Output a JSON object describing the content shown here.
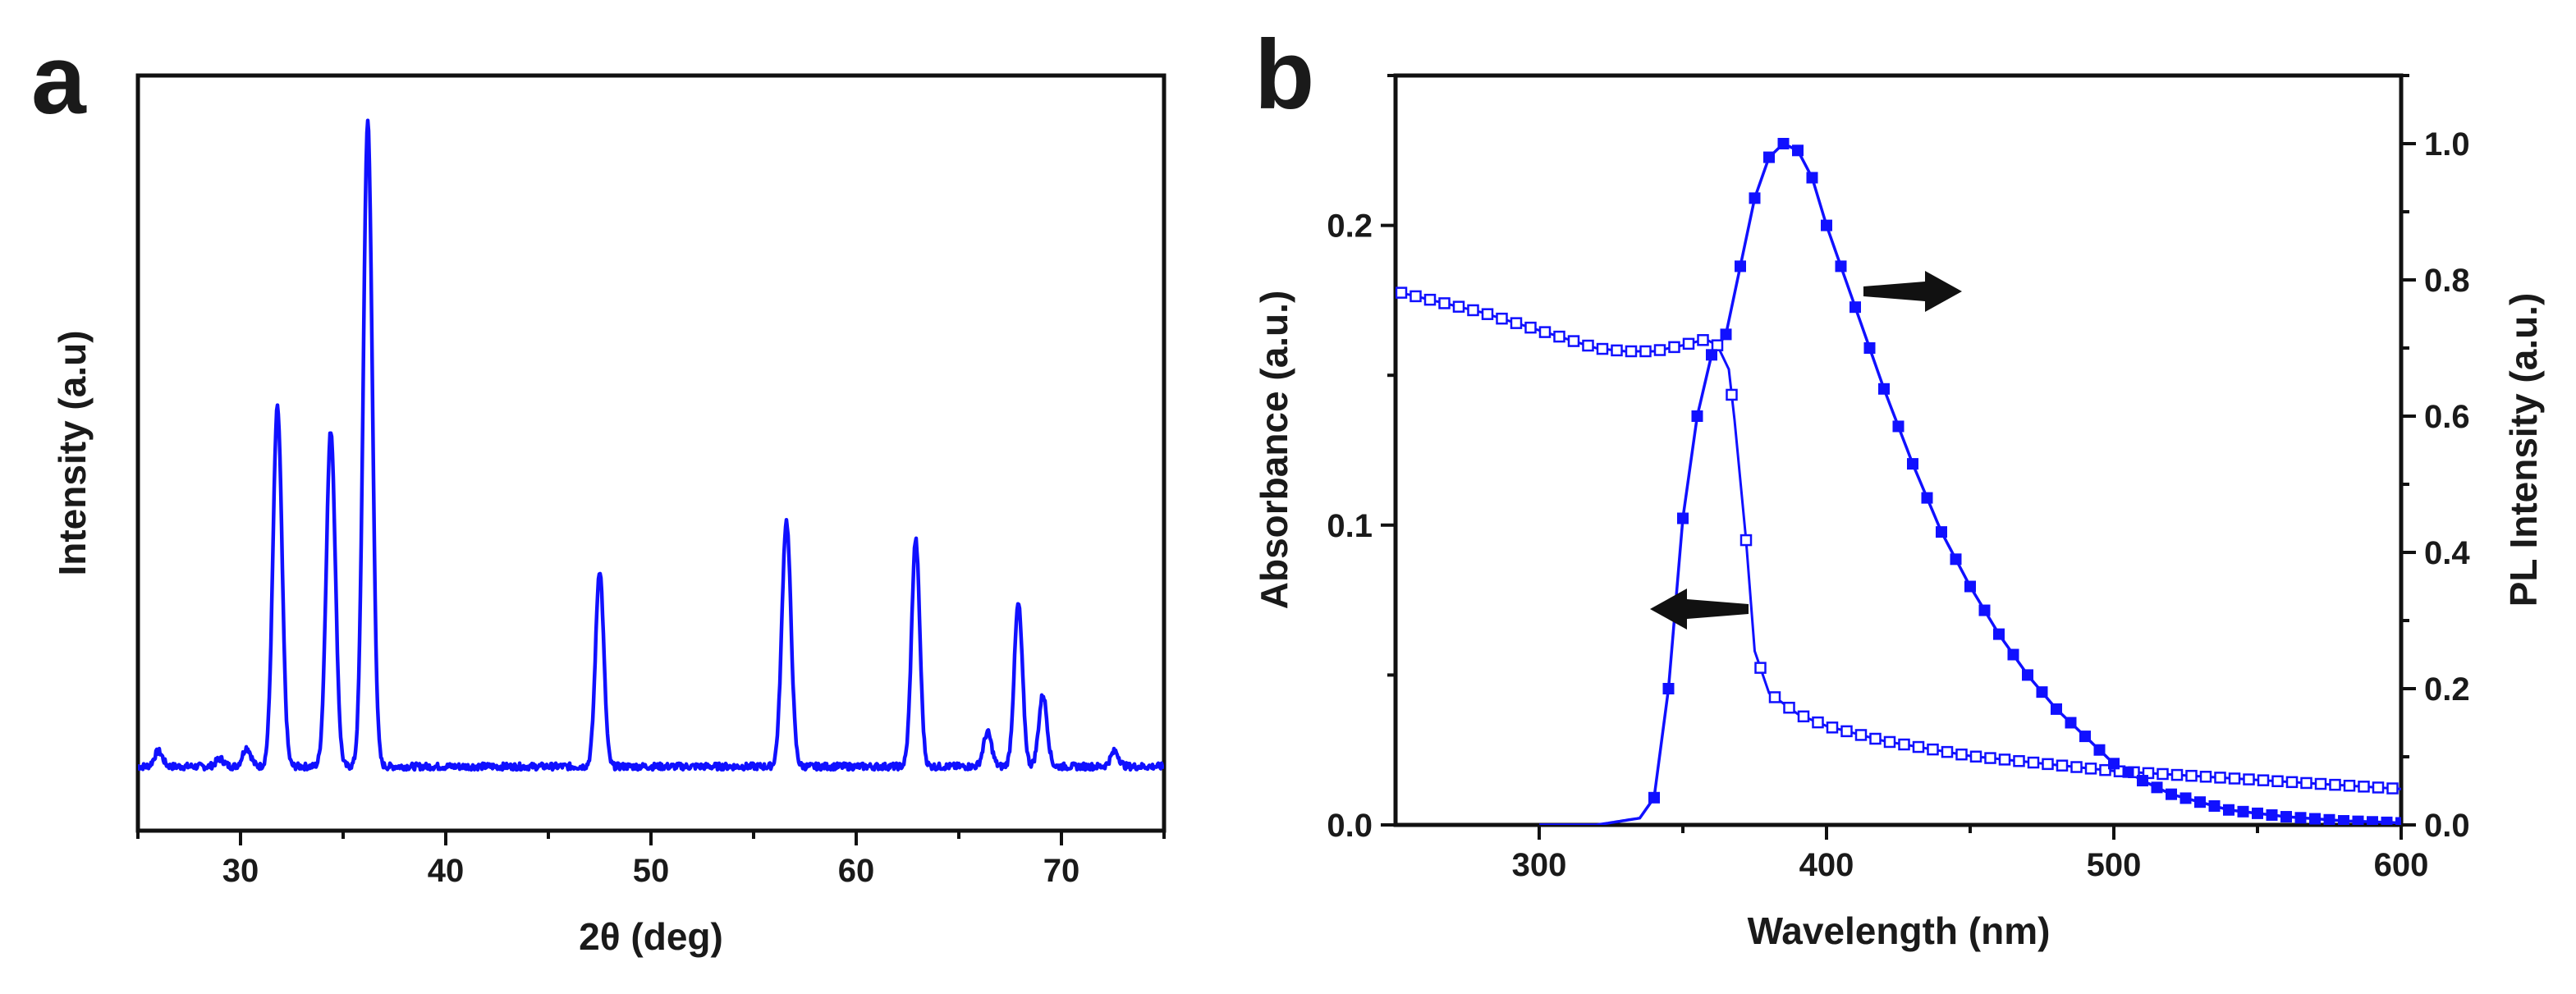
{
  "chart_data": [
    {
      "panel": "a",
      "type": "line",
      "xlabel": "2θ (deg)",
      "ylabel": "Intensity (a.u)",
      "xlim": [
        25,
        75
      ],
      "ylim": [
        0,
        100
      ],
      "xticks": [
        30,
        40,
        50,
        60,
        70
      ],
      "series_color": "#1010ff",
      "baseline": 8.5,
      "peaks": [
        {
          "x": 26.0,
          "height": 10.5
        },
        {
          "x": 29.0,
          "height": 9.5
        },
        {
          "x": 30.3,
          "height": 11.0
        },
        {
          "x": 31.8,
          "height": 56.0
        },
        {
          "x": 34.4,
          "height": 53.0
        },
        {
          "x": 36.2,
          "height": 94.0
        },
        {
          "x": 47.5,
          "height": 34.5
        },
        {
          "x": 56.6,
          "height": 41.0
        },
        {
          "x": 62.9,
          "height": 38.5
        },
        {
          "x": 66.4,
          "height": 13.0
        },
        {
          "x": 67.9,
          "height": 30.0
        },
        {
          "x": 69.1,
          "height": 18.0
        },
        {
          "x": 72.6,
          "height": 10.5
        }
      ]
    },
    {
      "panel": "b",
      "type": "line",
      "xlabel": "Wavelength (nm)",
      "ylabel": "Absorbance (a.u.)",
      "y2label": "PL Intensity (a.u.)",
      "xlim": [
        250,
        600
      ],
      "ylim": [
        0,
        0.25
      ],
      "y2lim": [
        0,
        1.1
      ],
      "xticks": [
        300,
        400,
        500,
        600
      ],
      "xtick_labels": [
        "300",
        "400",
        "500",
        "600"
      ],
      "yticks": [
        0.0,
        0.1,
        0.2
      ],
      "ytick_labels": [
        "0.0",
        "0.1",
        "0.2"
      ],
      "y2ticks": [
        0.0,
        0.2,
        0.4,
        0.6,
        0.8,
        1.0
      ],
      "y2tick_labels": [
        "0.0",
        "0.2",
        "0.4",
        "0.6",
        "0.8",
        "1.0"
      ],
      "series_color": "#1010ff",
      "arrow_color": "#111111",
      "series": [
        {
          "name": "Absorbance",
          "axis": "left",
          "marker": "open-square",
          "x": [
            250,
            280,
            300,
            320,
            330,
            340,
            350,
            358,
            362,
            366,
            368,
            372,
            375,
            380,
            390,
            400,
            420,
            450,
            500,
            550,
            600
          ],
          "y": [
            0.178,
            0.171,
            0.165,
            0.159,
            0.158,
            0.158,
            0.16,
            0.162,
            0.16,
            0.152,
            0.135,
            0.095,
            0.058,
            0.044,
            0.037,
            0.033,
            0.028,
            0.023,
            0.018,
            0.015,
            0.012
          ]
        },
        {
          "name": "PL",
          "axis": "right",
          "marker": "filled-square",
          "x": [
            300,
            320,
            335,
            340,
            345,
            350,
            355,
            360,
            365,
            370,
            375,
            380,
            385,
            390,
            395,
            400,
            410,
            420,
            430,
            440,
            450,
            460,
            470,
            480,
            490,
            500,
            510,
            520,
            540,
            560,
            580,
            600
          ],
          "y": [
            0.0,
            0.0,
            0.01,
            0.04,
            0.2,
            0.45,
            0.6,
            0.69,
            0.72,
            0.82,
            0.92,
            0.98,
            1.0,
            0.99,
            0.95,
            0.88,
            0.76,
            0.64,
            0.53,
            0.43,
            0.35,
            0.28,
            0.22,
            0.17,
            0.13,
            0.09,
            0.065,
            0.045,
            0.022,
            0.012,
            0.006,
            0.003
          ]
        }
      ]
    }
  ]
}
